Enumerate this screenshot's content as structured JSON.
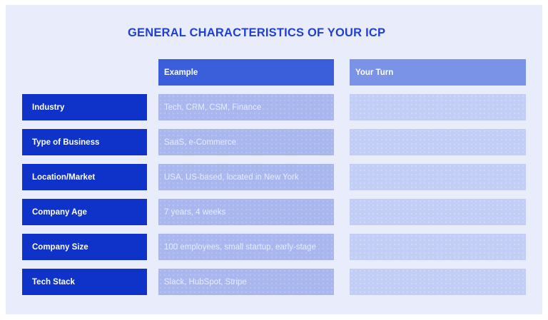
{
  "title": "GENERAL CHARACTERISTICS OF YOUR ICP",
  "headers": {
    "example": "Example",
    "your_turn": "Your Turn"
  },
  "rows": [
    {
      "label": "Industry",
      "example": "Tech, CRM, CSM, Finance",
      "your_turn": ""
    },
    {
      "label": "Type of Business",
      "example": "SaaS, e-Commerce",
      "your_turn": ""
    },
    {
      "label": "Location/Market",
      "example": "USA, US-based, located in New York",
      "your_turn": ""
    },
    {
      "label": "Company Age",
      "example": "7 years, 4 weeks",
      "your_turn": ""
    },
    {
      "label": "Company Size",
      "example": "100 employees, small startup, early-stage",
      "your_turn": ""
    },
    {
      "label": "Tech Stack",
      "example": "Slack, HubSpot, Stripe",
      "your_turn": ""
    }
  ],
  "colors": {
    "title": "#1f3fd6",
    "row_label_bg": "#0f33c8",
    "example_header_bg": "#3b5fdb",
    "your_turn_header_bg": "#7a93e6",
    "example_cell_bg": "#a9b7ee",
    "your_turn_cell_bg": "#c3cef6",
    "canvas_bg": "#e9edfb"
  }
}
